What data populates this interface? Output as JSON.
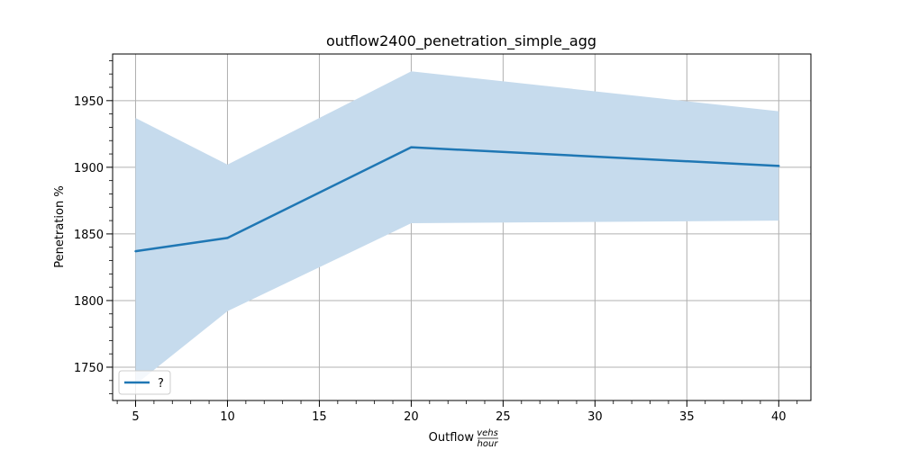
{
  "chart_data": {
    "type": "line",
    "title": "outflow2400_penetration_simple_agg",
    "xlabel": "Outflow",
    "xlabel_unit_numerator": "vehs",
    "xlabel_unit_denominator": "hour",
    "ylabel": "Penetration %",
    "x": [
      5,
      10,
      20,
      40
    ],
    "series": [
      {
        "name": "?",
        "color": "#1f77b4",
        "values": [
          1837,
          1847,
          1915,
          1901
        ],
        "band_upper": [
          1937,
          1902,
          1972,
          1942
        ],
        "band_lower": [
          1737,
          1792,
          1858,
          1860
        ],
        "band_color": "#c6dbed"
      }
    ],
    "xlim": [
      3.75,
      41.75
    ],
    "ylim": [
      1725,
      1985
    ],
    "x_ticks": [
      5,
      10,
      15,
      20,
      25,
      30,
      35,
      40
    ],
    "y_ticks": [
      1750,
      1800,
      1850,
      1900,
      1950
    ],
    "x_minor_step": 1,
    "y_minor_step": 10,
    "grid": true,
    "legend_position": "lower-left"
  }
}
